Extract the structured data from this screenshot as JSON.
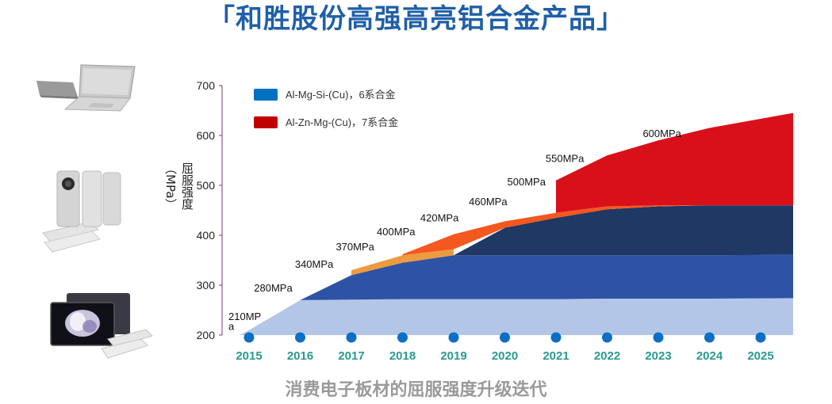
{
  "page": {
    "title": "「和胜股份高强高亮铝合金产品」",
    "subtitle": "消费电子板材的屈服强度升级迭代"
  },
  "devices": [
    {
      "icon": "laptop-icon"
    },
    {
      "icon": "foldable-phone-icon"
    },
    {
      "icon": "tablet-icon"
    }
  ],
  "chart_data": {
    "type": "area",
    "ylabel_name": "屈服强度",
    "ylabel_unit": "（MPa）",
    "ylim": [
      200,
      700
    ],
    "yticks": [
      200,
      300,
      400,
      500,
      600,
      700
    ],
    "categories": [
      "2015",
      "2016",
      "2017",
      "2018",
      "2019",
      "2020",
      "2021",
      "2022",
      "2023",
      "2024",
      "2025"
    ],
    "legend": [
      {
        "label": "Al-Mg-Si-(Cu)，6系合金",
        "color": "#0070c0"
      },
      {
        "label": "Al-Zn-Mg-(Cu)，7系合金",
        "color": "#c00000"
      }
    ],
    "series": [
      {
        "color": "#b4c6e7",
        "values": [
          210,
          270,
          271,
          272,
          272,
          272,
          272,
          273,
          273,
          273,
          274
        ]
      },
      {
        "color": "#2e53a4",
        "values": [
          null,
          270,
          320,
          345,
          360,
          360,
          360,
          360,
          360,
          360,
          361
        ]
      },
      {
        "color": "#1f3864",
        "values": [
          null,
          null,
          null,
          null,
          360,
          415,
          435,
          452,
          458,
          460,
          460
        ]
      },
      {
        "color": "#ed9b3f",
        "values": [
          null,
          null,
          330,
          360,
          372,
          null,
          null,
          null,
          null,
          null,
          null
        ]
      },
      {
        "color": "#f4581e",
        "values": [
          null,
          null,
          null,
          362,
          402,
          428,
          445,
          458,
          460,
          460,
          460
        ]
      },
      {
        "color": "#d9101a",
        "values": [
          null,
          null,
          null,
          null,
          null,
          null,
          510,
          560,
          590,
          615,
          645
        ]
      }
    ],
    "annotations": [
      {
        "text": "210MP",
        "year": 2015,
        "value": 230
      },
      {
        "text": "a",
        "year": 2015,
        "value": 210
      },
      {
        "text": "280MPa",
        "year": 2015.5,
        "value": 287
      },
      {
        "text": "340MPa",
        "year": 2016.3,
        "value": 335
      },
      {
        "text": "370MPa",
        "year": 2017.1,
        "value": 370
      },
      {
        "text": "400MPa",
        "year": 2017.9,
        "value": 400
      },
      {
        "text": "420MPa",
        "year": 2018.75,
        "value": 428
      },
      {
        "text": "460MPa",
        "year": 2019.7,
        "value": 460
      },
      {
        "text": "500MPa",
        "year": 2020.45,
        "value": 500
      },
      {
        "text": "550MPa",
        "year": 2021.2,
        "value": 547
      },
      {
        "text": "600MPa",
        "year": 2023.1,
        "value": 597
      }
    ]
  }
}
